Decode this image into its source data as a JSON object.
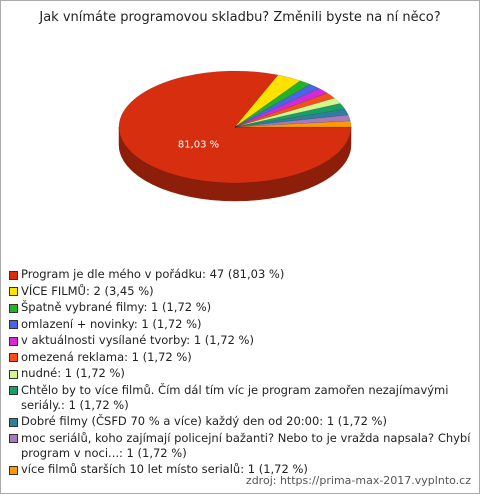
{
  "chart_data": {
    "type": "pie",
    "title": "Jak vnímáte programovou skladbu? Změnili byste na ní něco?",
    "categories": [
      "Program je dle mého v pořádku: 47 (81,03 %)",
      "VÍCE FILMŮ: 2 (3,45 %)",
      "Špatně vybrané filmy: 1 (1,72 %)",
      "omlazení + novinky: 1 (1,72 %)",
      "v aktuálnosti vysílané tvorby: 1 (1,72 %)",
      "omezená reklama: 1 (1,72 %)",
      "nudné: 1 (1,72 %)",
      "Chtělo by to více filmů. Čím dál tím víc je program zamořen nezajímavými seriály.: 1 (1,72 %)",
      "Dobré filmy (ČSFD 70 % a více) každý den od 20:00: 1 (1,72 %)",
      "moc seriálů, koho zajímají policejní bažanti? Nebo to je vražda napsala? Chybí program v noci...: 1 (1,72 %)",
      "více filmů starších 10 let místo serialů: 1 (1,72 %)"
    ],
    "values": [
      81.03,
      3.45,
      1.72,
      1.72,
      1.72,
      1.72,
      1.72,
      1.72,
      1.72,
      1.72,
      1.72
    ],
    "value_labels": [
      "81,03 %",
      null,
      null,
      null,
      null,
      null,
      null,
      null,
      null,
      null,
      null
    ],
    "colors": [
      "#d82e10",
      "#ffe200",
      "#22b422",
      "#4a64e6",
      "#d42ad4",
      "#f4501a",
      "#d2f58c",
      "#18a064",
      "#2e7e9c",
      "#a878c0",
      "#ff9a00"
    ],
    "source": "zdroj: https://prima-max-2017.vyplnto.cz"
  }
}
